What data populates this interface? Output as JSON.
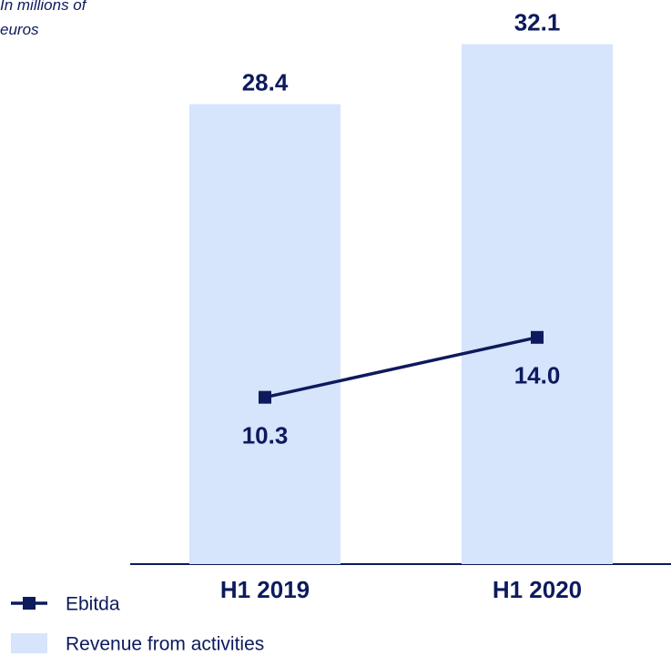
{
  "chart_data": {
    "type": "bar_line",
    "subtitle": "In millions of euros",
    "categories": [
      "H1 2019",
      "H1 2020"
    ],
    "series": [
      {
        "name": "Ebitda",
        "type": "line",
        "color": "#0d1a5c",
        "values": [
          10.3,
          14.0
        ],
        "value_labels": [
          "10.3",
          "14.0"
        ]
      },
      {
        "name": "Revenue from activities",
        "type": "bar",
        "color": "#d6e4fc",
        "values": [
          28.4,
          32.1
        ]
      }
    ],
    "ylim": [
      0,
      34
    ]
  }
}
